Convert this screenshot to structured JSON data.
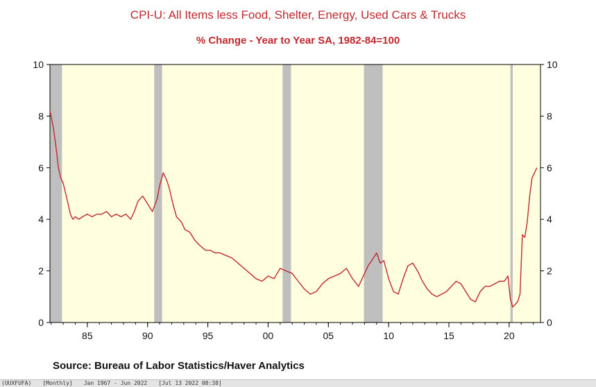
{
  "chart_data": {
    "type": "line",
    "title": "CPI-U: All Items less Food, Shelter, Energy, Used Cars & Trucks",
    "subtitle": "% Change - Year to Year    SA, 1982-84=100",
    "xlabel": "",
    "ylabel": "",
    "ylim": [
      0,
      10
    ],
    "xlim": [
      1981.9,
      2022.6
    ],
    "y_ticks": [
      0,
      2,
      4,
      6,
      8,
      10
    ],
    "x_ticks": [
      {
        "value": 1985,
        "label": "85"
      },
      {
        "value": 1990,
        "label": "90"
      },
      {
        "value": 1995,
        "label": "95"
      },
      {
        "value": 2000,
        "label": "00"
      },
      {
        "value": 2005,
        "label": "05"
      },
      {
        "value": 2010,
        "label": "10"
      },
      {
        "value": 2015,
        "label": "15"
      },
      {
        "value": 2020,
        "label": "20"
      }
    ],
    "recessions": [
      [
        1981.9,
        1982.9
      ],
      [
        1990.55,
        1991.2
      ],
      [
        2001.2,
        2001.9
      ],
      [
        2007.95,
        2009.5
      ],
      [
        2020.1,
        2020.3
      ]
    ],
    "series": [
      {
        "name": "",
        "color": "#c0282d",
        "x": [
          1981.9,
          1982.0,
          1982.2,
          1982.4,
          1982.6,
          1982.8,
          1983.0,
          1983.2,
          1983.4,
          1983.6,
          1983.8,
          1984.0,
          1984.3,
          1984.6,
          1985.0,
          1985.4,
          1985.8,
          1986.2,
          1986.6,
          1987.0,
          1987.4,
          1987.8,
          1988.2,
          1988.6,
          1988.9,
          1989.2,
          1989.6,
          1990.0,
          1990.4,
          1990.8,
          1991.0,
          1991.3,
          1991.6,
          1991.8,
          1992.1,
          1992.4,
          1992.8,
          1993.1,
          1993.5,
          1993.9,
          1994.3,
          1994.8,
          1995.2,
          1995.6,
          1996.0,
          1996.5,
          1997.0,
          1997.5,
          1998.0,
          1998.5,
          1999.0,
          1999.5,
          2000.0,
          2000.5,
          2001.0,
          2001.5,
          2002.0,
          2002.5,
          2003.0,
          2003.5,
          2004.0,
          2004.5,
          2005.0,
          2005.5,
          2006.0,
          2006.5,
          2007.0,
          2007.5,
          2008.0,
          2008.3,
          2008.6,
          2009.0,
          2009.3,
          2009.6,
          2010.0,
          2010.4,
          2010.8,
          2011.2,
          2011.6,
          2012.0,
          2012.4,
          2012.8,
          2013.2,
          2013.6,
          2014.0,
          2014.4,
          2014.8,
          2015.2,
          2015.6,
          2016.0,
          2016.4,
          2016.8,
          2017.2,
          2017.6,
          2018.0,
          2018.4,
          2018.8,
          2019.2,
          2019.6,
          2019.9,
          2020.1,
          2020.3,
          2020.5,
          2020.7,
          2020.9,
          2021.1,
          2021.3,
          2021.5,
          2021.7,
          2021.9,
          2022.1,
          2022.3
        ],
        "values": [
          8.2,
          8.0,
          7.5,
          6.8,
          6.0,
          5.6,
          5.4,
          5.0,
          4.6,
          4.2,
          4.0,
          4.1,
          4.0,
          4.1,
          4.2,
          4.1,
          4.2,
          4.2,
          4.3,
          4.1,
          4.2,
          4.1,
          4.2,
          4.0,
          4.3,
          4.7,
          4.9,
          4.6,
          4.3,
          4.8,
          5.3,
          5.8,
          5.5,
          5.2,
          4.6,
          4.1,
          3.9,
          3.6,
          3.5,
          3.2,
          3.0,
          2.8,
          2.8,
          2.7,
          2.7,
          2.6,
          2.5,
          2.3,
          2.1,
          1.9,
          1.7,
          1.6,
          1.8,
          1.7,
          2.1,
          2.0,
          1.9,
          1.6,
          1.3,
          1.1,
          1.2,
          1.5,
          1.7,
          1.8,
          1.9,
          2.1,
          1.7,
          1.4,
          1.9,
          2.2,
          2.4,
          2.7,
          2.3,
          2.4,
          1.7,
          1.2,
          1.1,
          1.7,
          2.2,
          2.3,
          2.0,
          1.6,
          1.3,
          1.1,
          1.0,
          1.1,
          1.2,
          1.4,
          1.6,
          1.5,
          1.2,
          0.9,
          0.8,
          1.2,
          1.4,
          1.4,
          1.5,
          1.6,
          1.6,
          1.8,
          0.9,
          0.6,
          0.7,
          0.8,
          1.1,
          3.4,
          3.3,
          3.9,
          4.9,
          5.6,
          5.8,
          6.0
        ]
      }
    ]
  },
  "source": "Source:  Bureau of Labor Statistics/Haver Analytics",
  "status": {
    "series_code": "(UUXFUFA)",
    "frequency": "[Monthly]",
    "range": "Jan 1967 - Jun 2022",
    "timestamp": "[Jul 13 2022 08:38]"
  }
}
